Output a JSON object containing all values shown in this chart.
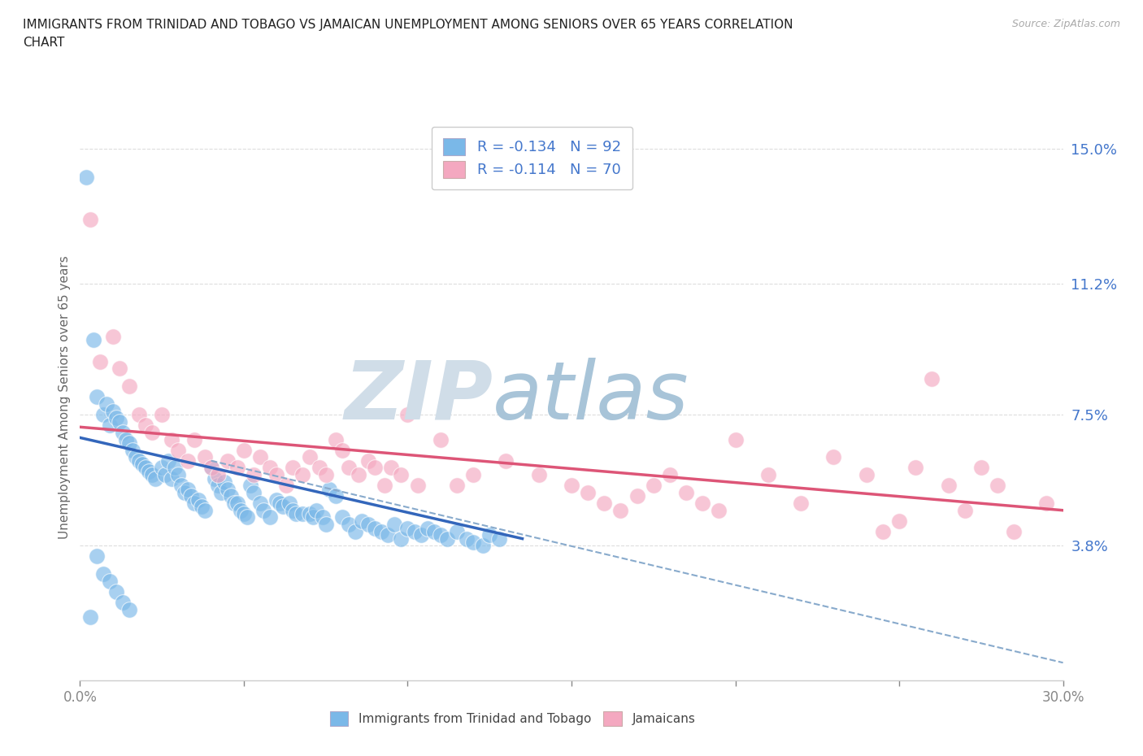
{
  "title_line1": "IMMIGRANTS FROM TRINIDAD AND TOBAGO VS JAMAICAN UNEMPLOYMENT AMONG SENIORS OVER 65 YEARS CORRELATION",
  "title_line2": "CHART",
  "source": "Source: ZipAtlas.com",
  "ylabel": "Unemployment Among Seniors over 65 years",
  "xlim": [
    0.0,
    0.3
  ],
  "ylim": [
    0.0,
    0.16
  ],
  "yticks": [
    0.038,
    0.075,
    0.112,
    0.15
  ],
  "ytick_labels": [
    "3.8%",
    "7.5%",
    "11.2%",
    "15.0%"
  ],
  "xtick_vals": [
    0.0,
    0.05,
    0.1,
    0.15,
    0.2,
    0.25,
    0.3
  ],
  "xtick_labels": [
    "0.0%",
    "",
    "",
    "",
    "",
    "",
    "30.0%"
  ],
  "color_blue": "#7ab8e8",
  "color_pink": "#f4a8c0",
  "legend_r1": "R = -0.134   N = 92",
  "legend_r2": "R = -0.114   N = 70",
  "legend_label1": "Immigrants from Trinidad and Tobago",
  "legend_label2": "Jamaicans",
  "watermark": "ZIPatlas",
  "watermark_color_zip": "#d0dde8",
  "watermark_color_atlas": "#a8c4d8",
  "trendline_blue": [
    [
      0.0,
      0.0685
    ],
    [
      0.135,
      0.04
    ]
  ],
  "trendline_pink": [
    [
      0.0,
      0.0715
    ],
    [
      0.3,
      0.048
    ]
  ],
  "trendline_dashed": [
    [
      0.04,
      0.062
    ],
    [
      0.3,
      0.005
    ]
  ],
  "blue_points": [
    [
      0.002,
      0.142
    ],
    [
      0.004,
      0.096
    ],
    [
      0.005,
      0.08
    ],
    [
      0.007,
      0.075
    ],
    [
      0.008,
      0.078
    ],
    [
      0.009,
      0.072
    ],
    [
      0.01,
      0.076
    ],
    [
      0.011,
      0.074
    ],
    [
      0.012,
      0.073
    ],
    [
      0.013,
      0.07
    ],
    [
      0.014,
      0.068
    ],
    [
      0.015,
      0.067
    ],
    [
      0.016,
      0.065
    ],
    [
      0.017,
      0.063
    ],
    [
      0.018,
      0.062
    ],
    [
      0.019,
      0.061
    ],
    [
      0.02,
      0.06
    ],
    [
      0.021,
      0.059
    ],
    [
      0.022,
      0.058
    ],
    [
      0.023,
      0.057
    ],
    [
      0.025,
      0.06
    ],
    [
      0.026,
      0.058
    ],
    [
      0.027,
      0.062
    ],
    [
      0.028,
      0.057
    ],
    [
      0.029,
      0.06
    ],
    [
      0.03,
      0.058
    ],
    [
      0.031,
      0.055
    ],
    [
      0.032,
      0.053
    ],
    [
      0.033,
      0.054
    ],
    [
      0.034,
      0.052
    ],
    [
      0.035,
      0.05
    ],
    [
      0.036,
      0.051
    ],
    [
      0.037,
      0.049
    ],
    [
      0.038,
      0.048
    ],
    [
      0.04,
      0.06
    ],
    [
      0.041,
      0.057
    ],
    [
      0.042,
      0.055
    ],
    [
      0.043,
      0.053
    ],
    [
      0.044,
      0.056
    ],
    [
      0.045,
      0.054
    ],
    [
      0.046,
      0.052
    ],
    [
      0.047,
      0.05
    ],
    [
      0.048,
      0.05
    ],
    [
      0.049,
      0.048
    ],
    [
      0.05,
      0.047
    ],
    [
      0.051,
      0.046
    ],
    [
      0.052,
      0.055
    ],
    [
      0.053,
      0.053
    ],
    [
      0.055,
      0.05
    ],
    [
      0.056,
      0.048
    ],
    [
      0.058,
      0.046
    ],
    [
      0.06,
      0.051
    ],
    [
      0.061,
      0.05
    ],
    [
      0.062,
      0.049
    ],
    [
      0.064,
      0.05
    ],
    [
      0.065,
      0.048
    ],
    [
      0.066,
      0.047
    ],
    [
      0.068,
      0.047
    ],
    [
      0.07,
      0.047
    ],
    [
      0.071,
      0.046
    ],
    [
      0.072,
      0.048
    ],
    [
      0.074,
      0.046
    ],
    [
      0.075,
      0.044
    ],
    [
      0.076,
      0.054
    ],
    [
      0.078,
      0.052
    ],
    [
      0.08,
      0.046
    ],
    [
      0.082,
      0.044
    ],
    [
      0.084,
      0.042
    ],
    [
      0.086,
      0.045
    ],
    [
      0.088,
      0.044
    ],
    [
      0.09,
      0.043
    ],
    [
      0.092,
      0.042
    ],
    [
      0.094,
      0.041
    ],
    [
      0.096,
      0.044
    ],
    [
      0.098,
      0.04
    ],
    [
      0.1,
      0.043
    ],
    [
      0.102,
      0.042
    ],
    [
      0.104,
      0.041
    ],
    [
      0.106,
      0.043
    ],
    [
      0.108,
      0.042
    ],
    [
      0.11,
      0.041
    ],
    [
      0.112,
      0.04
    ],
    [
      0.115,
      0.042
    ],
    [
      0.118,
      0.04
    ],
    [
      0.12,
      0.039
    ],
    [
      0.123,
      0.038
    ],
    [
      0.125,
      0.041
    ],
    [
      0.128,
      0.04
    ],
    [
      0.005,
      0.035
    ],
    [
      0.007,
      0.03
    ],
    [
      0.009,
      0.028
    ],
    [
      0.011,
      0.025
    ],
    [
      0.013,
      0.022
    ],
    [
      0.015,
      0.02
    ],
    [
      0.003,
      0.018
    ]
  ],
  "pink_points": [
    [
      0.003,
      0.13
    ],
    [
      0.006,
      0.09
    ],
    [
      0.01,
      0.097
    ],
    [
      0.012,
      0.088
    ],
    [
      0.015,
      0.083
    ],
    [
      0.018,
      0.075
    ],
    [
      0.02,
      0.072
    ],
    [
      0.022,
      0.07
    ],
    [
      0.025,
      0.075
    ],
    [
      0.028,
      0.068
    ],
    [
      0.03,
      0.065
    ],
    [
      0.033,
      0.062
    ],
    [
      0.035,
      0.068
    ],
    [
      0.038,
      0.063
    ],
    [
      0.04,
      0.06
    ],
    [
      0.042,
      0.058
    ],
    [
      0.045,
      0.062
    ],
    [
      0.048,
      0.06
    ],
    [
      0.05,
      0.065
    ],
    [
      0.053,
      0.058
    ],
    [
      0.055,
      0.063
    ],
    [
      0.058,
      0.06
    ],
    [
      0.06,
      0.058
    ],
    [
      0.063,
      0.055
    ],
    [
      0.065,
      0.06
    ],
    [
      0.068,
      0.058
    ],
    [
      0.07,
      0.063
    ],
    [
      0.073,
      0.06
    ],
    [
      0.075,
      0.058
    ],
    [
      0.078,
      0.068
    ],
    [
      0.08,
      0.065
    ],
    [
      0.082,
      0.06
    ],
    [
      0.085,
      0.058
    ],
    [
      0.088,
      0.062
    ],
    [
      0.09,
      0.06
    ],
    [
      0.093,
      0.055
    ],
    [
      0.095,
      0.06
    ],
    [
      0.098,
      0.058
    ],
    [
      0.1,
      0.075
    ],
    [
      0.103,
      0.055
    ],
    [
      0.11,
      0.068
    ],
    [
      0.115,
      0.055
    ],
    [
      0.12,
      0.058
    ],
    [
      0.13,
      0.062
    ],
    [
      0.14,
      0.058
    ],
    [
      0.15,
      0.055
    ],
    [
      0.155,
      0.053
    ],
    [
      0.16,
      0.05
    ],
    [
      0.165,
      0.048
    ],
    [
      0.17,
      0.052
    ],
    [
      0.175,
      0.055
    ],
    [
      0.18,
      0.058
    ],
    [
      0.185,
      0.053
    ],
    [
      0.19,
      0.05
    ],
    [
      0.195,
      0.048
    ],
    [
      0.2,
      0.068
    ],
    [
      0.21,
      0.058
    ],
    [
      0.22,
      0.05
    ],
    [
      0.23,
      0.063
    ],
    [
      0.24,
      0.058
    ],
    [
      0.245,
      0.042
    ],
    [
      0.25,
      0.045
    ],
    [
      0.255,
      0.06
    ],
    [
      0.26,
      0.085
    ],
    [
      0.265,
      0.055
    ],
    [
      0.27,
      0.048
    ],
    [
      0.275,
      0.06
    ],
    [
      0.28,
      0.055
    ],
    [
      0.285,
      0.042
    ],
    [
      0.295,
      0.05
    ]
  ],
  "grid_color": "#dddddd",
  "background_color": "#ffffff",
  "axis_label_color": "#4477cc",
  "tick_color_x": "#888888",
  "trendline_blue_color": "#3366bb",
  "trendline_pink_color": "#dd5577",
  "trendline_dashed_color": "#88aacc"
}
